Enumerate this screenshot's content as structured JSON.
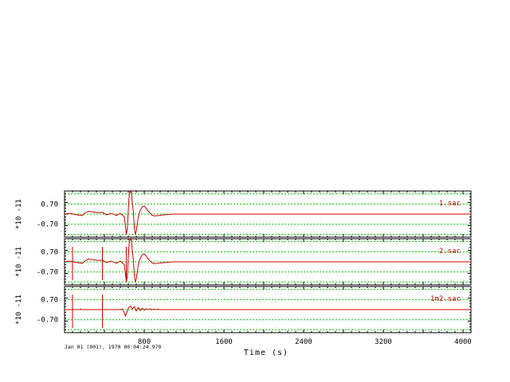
{
  "window": {
    "background": "#ffffff"
  },
  "x_axis": {
    "label": "Time (s)",
    "range": [
      0,
      4080
    ],
    "tick_labels": [
      "800",
      "1600",
      "2400",
      "3200",
      "4000"
    ],
    "tick_values": [
      800,
      1600,
      2400,
      3200,
      4000
    ],
    "minor_step": 80,
    "major_step": 400
  },
  "timestamp": "Jan 01 (001), 1970 00:04:24.970",
  "colors": {
    "frame": "#000000",
    "grid": "#00cc00",
    "trace": "#cc0000",
    "filename": "#cc0000"
  },
  "panels": [
    {
      "filename": "1.sac",
      "y_scale": "*10 -11",
      "y_ticks": [
        "0.70",
        "-0.70"
      ],
      "y_tick_values": [
        0.7,
        -0.7
      ],
      "y_range": [
        -1.6,
        1.6
      ],
      "grid_values": [
        1.4,
        0.7,
        0,
        -0.7,
        -1.4
      ],
      "spikes": []
    },
    {
      "filename": "2.sac",
      "y_scale": "*10 -11",
      "y_ticks": [
        "0.70",
        "-0.70"
      ],
      "y_tick_values": [
        0.7,
        -0.7
      ],
      "y_range": [
        -1.6,
        1.6
      ],
      "grid_values": [
        1.4,
        0.7,
        0,
        -0.7,
        -1.4
      ],
      "spikes": [
        80,
        380,
        620
      ]
    },
    {
      "filename": "1m2.sac",
      "y_scale": "*10 -11",
      "y_ticks": [
        "0.70",
        "-0.70"
      ],
      "y_tick_values": [
        0.7,
        -0.7
      ],
      "y_range": [
        -1.6,
        1.6
      ],
      "grid_values": [
        1.4,
        0.7,
        0,
        -0.7,
        -1.4
      ],
      "spikes": [
        80,
        380
      ]
    }
  ],
  "chart_data": {
    "type": "line",
    "xlabel": "Time (s)",
    "xlim": [
      0,
      4080
    ],
    "series": [
      {
        "name": "1.sac",
        "x": [
          0,
          60,
          120,
          180,
          200,
          240,
          280,
          340,
          380,
          420,
          470,
          520,
          560,
          600,
          610,
          620,
          630,
          640,
          650,
          660,
          665,
          670,
          680,
          690,
          700,
          710,
          720,
          730,
          740,
          760,
          780,
          800,
          820,
          840,
          860,
          880,
          900,
          950,
          1000,
          1050,
          1100,
          1200,
          4080
        ],
        "y": [
          0,
          0.05,
          -0.05,
          -0.1,
          0.05,
          0.2,
          0.15,
          0.1,
          0.12,
          -0.05,
          0.05,
          -0.1,
          0.05,
          -0.2,
          -0.8,
          -1.4,
          -1.0,
          0.3,
          1.45,
          1.6,
          1.5,
          1.6,
          0.8,
          0.2,
          -0.9,
          -1.4,
          -1.2,
          -0.7,
          -0.2,
          0.25,
          0.5,
          0.55,
          0.4,
          0.2,
          0.05,
          -0.08,
          -0.12,
          -0.1,
          -0.05,
          -0.02,
          0,
          0,
          0
        ]
      },
      {
        "name": "2.sac",
        "x": [
          0,
          60,
          120,
          180,
          200,
          240,
          280,
          340,
          380,
          420,
          470,
          520,
          560,
          600,
          610,
          620,
          630,
          640,
          650,
          660,
          665,
          670,
          680,
          690,
          700,
          710,
          720,
          730,
          740,
          760,
          780,
          800,
          820,
          840,
          860,
          880,
          900,
          950,
          1000,
          1050,
          1100,
          1200,
          4080
        ],
        "y": [
          0,
          0.05,
          -0.05,
          -0.1,
          0.05,
          0.2,
          0.15,
          0.1,
          0.12,
          -0.05,
          0.05,
          -0.1,
          0.05,
          -0.2,
          -0.8,
          -1.4,
          -1.0,
          0.3,
          1.45,
          1.6,
          1.5,
          1.6,
          0.8,
          0.2,
          -0.9,
          -1.4,
          -1.2,
          -0.7,
          -0.2,
          0.25,
          0.5,
          0.55,
          0.4,
          0.2,
          0.05,
          -0.08,
          -0.12,
          -0.1,
          -0.05,
          -0.02,
          0,
          0,
          0
        ]
      },
      {
        "name": "1m2.sac",
        "x": [
          0,
          150,
          160,
          170,
          400,
          560,
          580,
          600,
          610,
          620,
          640,
          660,
          680,
          700,
          720,
          740,
          760,
          780,
          800,
          820,
          840,
          860,
          880,
          900,
          920,
          940,
          960,
          4080
        ],
        "y": [
          0,
          0,
          0.05,
          0,
          0,
          0,
          0.05,
          -0.2,
          -0.45,
          -0.3,
          0.1,
          0.25,
          0.05,
          0.2,
          -0.1,
          0.15,
          -0.05,
          0.1,
          -0.05,
          0.05,
          0,
          0.05,
          0,
          0.03,
          0,
          0.02,
          0,
          0
        ]
      }
    ]
  }
}
